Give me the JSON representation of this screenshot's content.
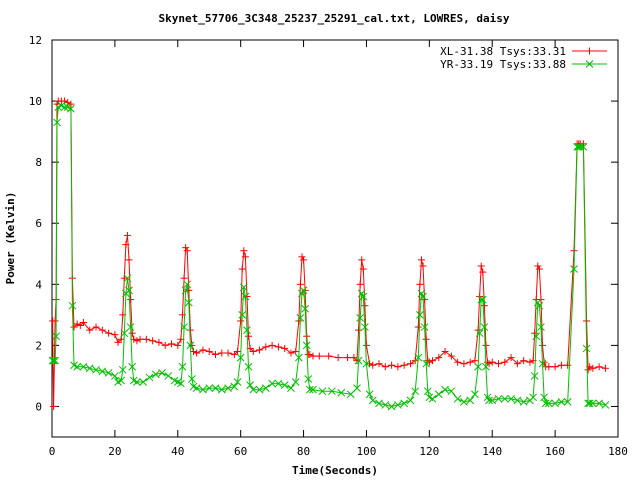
{
  "chart_data": {
    "type": "line",
    "title": "Skynet_57706_3C348_25237_25291_cal.txt, LOWRES, daisy",
    "xlabel": "Time(Seconds)",
    "ylabel": "Power (Kelvin)",
    "xlim": [
      0,
      180
    ],
    "ylim": [
      -1,
      12
    ],
    "xticks": [
      0,
      20,
      40,
      60,
      80,
      100,
      120,
      140,
      160,
      180
    ],
    "yticks": [
      0,
      2,
      4,
      6,
      8,
      10,
      12
    ],
    "xtick_labels": [
      "0",
      "20",
      "40",
      "60",
      "80",
      "100",
      "120",
      "140",
      "160",
      "180"
    ],
    "ytick_labels": [
      "0",
      "2",
      "4",
      "6",
      "8",
      "10",
      "12"
    ],
    "grid": false,
    "legend_position": "top-right",
    "series": [
      {
        "name": "XL-31.38 Tsys:33.31",
        "color": "#ff0000",
        "marker": "plus",
        "x": [
          0.2,
          0.5,
          1.0,
          1.3,
          1.6,
          2.0,
          3.0,
          4.0,
          5.0,
          6.0,
          6.5,
          7.0,
          8.0,
          9.0,
          10.0,
          12.0,
          14.0,
          16.0,
          18.0,
          20.0,
          21.0,
          22.0,
          22.5,
          23.0,
          23.5,
          24.0,
          24.5,
          25.0,
          25.5,
          26.0,
          27.0,
          28.0,
          30.0,
          32.0,
          34.0,
          36.0,
          38.0,
          40.0,
          41.0,
          41.5,
          42.0,
          42.5,
          43.0,
          43.5,
          44.0,
          44.5,
          45.0,
          46.0,
          48.0,
          50.0,
          52.0,
          54.0,
          56.0,
          58.0,
          59.0,
          60.0,
          60.5,
          61.0,
          61.5,
          62.0,
          62.5,
          63.0,
          64.0,
          66.0,
          68.0,
          70.0,
          72.0,
          74.0,
          76.0,
          77.5,
          78.5,
          79.0,
          79.5,
          80.0,
          80.5,
          81.0,
          81.5,
          82.0,
          83.0,
          85.0,
          88.0,
          91.0,
          94.0,
          96.0,
          97.0,
          97.5,
          98.0,
          98.5,
          99.0,
          99.5,
          100.0,
          101.0,
          102.0,
          104.0,
          106.0,
          108.0,
          110.0,
          112.0,
          114.0,
          115.5,
          116.5,
          117.0,
          117.5,
          118.0,
          118.5,
          119.0,
          119.5,
          120.0,
          121.0,
          123.0,
          125.0,
          127.0,
          129.0,
          131.0,
          133.0,
          134.5,
          135.5,
          136.0,
          136.5,
          137.0,
          137.5,
          138.0,
          138.5,
          139.0,
          140.0,
          142.0,
          144.0,
          146.0,
          148.0,
          150.0,
          152.0,
          153.0,
          153.5,
          154.0,
          154.5,
          155.0,
          155.5,
          156.0,
          156.5,
          157.0,
          158.0,
          160.0,
          162.0,
          164.0,
          166.0,
          167.0,
          167.5,
          168.0,
          169.0,
          170.0,
          170.5,
          171.0,
          172.0,
          174.0,
          176.0
        ],
        "y": [
          2.8,
          0.0,
          2.8,
          3.5,
          9.9,
          10.0,
          10.0,
          10.0,
          9.95,
          9.9,
          4.2,
          2.6,
          2.7,
          2.65,
          2.75,
          2.5,
          2.6,
          2.5,
          2.4,
          2.35,
          2.1,
          2.2,
          3.0,
          4.2,
          5.3,
          5.6,
          4.8,
          3.5,
          2.4,
          2.2,
          2.15,
          2.2,
          2.2,
          2.15,
          2.1,
          2.0,
          2.05,
          2.0,
          2.2,
          3.0,
          4.2,
          5.2,
          5.1,
          3.8,
          2.5,
          2.0,
          1.8,
          1.75,
          1.85,
          1.8,
          1.7,
          1.75,
          1.75,
          1.7,
          1.8,
          2.8,
          4.5,
          5.1,
          4.9,
          3.6,
          2.3,
          1.9,
          1.8,
          1.85,
          1.95,
          2.0,
          1.95,
          1.9,
          1.75,
          1.8,
          2.8,
          4.0,
          4.9,
          4.8,
          3.8,
          2.3,
          1.7,
          1.7,
          1.65,
          1.65,
          1.65,
          1.6,
          1.6,
          1.6,
          1.5,
          2.5,
          4.0,
          4.8,
          4.5,
          3.3,
          2.0,
          1.4,
          1.35,
          1.4,
          1.3,
          1.35,
          1.3,
          1.35,
          1.4,
          1.5,
          2.6,
          4.0,
          4.8,
          4.6,
          3.5,
          2.2,
          1.5,
          1.45,
          1.5,
          1.6,
          1.8,
          1.65,
          1.45,
          1.4,
          1.45,
          1.5,
          2.5,
          3.6,
          4.6,
          4.4,
          3.3,
          2.0,
          1.45,
          1.4,
          1.45,
          1.4,
          1.45,
          1.6,
          1.4,
          1.5,
          1.45,
          1.5,
          2.4,
          3.5,
          4.6,
          4.5,
          3.5,
          2.0,
          1.45,
          1.3,
          1.3,
          1.3,
          1.35,
          1.35,
          5.1,
          8.6,
          8.6,
          8.6,
          8.6,
          2.8,
          1.2,
          1.3,
          1.25,
          1.3,
          1.25
        ]
      },
      {
        "name": "YR-33.19 Tsys:33.88",
        "color": "#00c000",
        "marker": "cross",
        "x": [
          0.2,
          0.5,
          1.0,
          1.3,
          1.6,
          2.0,
          3.0,
          4.0,
          5.0,
          6.0,
          6.5,
          7.0,
          8.0,
          10.0,
          12.0,
          14.0,
          16.0,
          18.0,
          20.0,
          21.0,
          22.0,
          22.5,
          23.0,
          23.5,
          24.0,
          24.5,
          25.0,
          25.5,
          26.0,
          27.0,
          29.0,
          31.0,
          33.0,
          35.0,
          37.0,
          39.0,
          40.0,
          41.0,
          41.5,
          42.0,
          42.5,
          43.0,
          43.5,
          44.0,
          44.5,
          45.0,
          46.0,
          48.0,
          50.0,
          52.0,
          54.0,
          56.0,
          58.0,
          59.0,
          60.0,
          60.5,
          61.0,
          61.5,
          62.0,
          62.5,
          63.0,
          64.0,
          66.0,
          68.0,
          70.0,
          72.0,
          74.0,
          76.0,
          77.5,
          78.5,
          79.0,
          79.5,
          80.0,
          80.5,
          81.0,
          81.5,
          82.0,
          83.0,
          86.0,
          89.0,
          92.0,
          95.0,
          97.0,
          97.5,
          98.0,
          98.5,
          99.0,
          99.5,
          100.0,
          101.0,
          102.0,
          104.0,
          106.0,
          108.0,
          110.0,
          112.0,
          114.0,
          115.5,
          116.5,
          117.0,
          117.5,
          118.0,
          118.5,
          119.0,
          119.5,
          120.0,
          121.0,
          123.0,
          125.0,
          127.0,
          129.0,
          131.0,
          133.0,
          134.5,
          135.5,
          136.0,
          136.5,
          137.0,
          137.5,
          138.0,
          138.5,
          139.0,
          140.0,
          142.0,
          144.0,
          146.0,
          148.0,
          150.0,
          152.0,
          153.0,
          153.5,
          154.0,
          154.5,
          155.0,
          155.5,
          156.0,
          156.5,
          157.0,
          158.0,
          160.0,
          162.0,
          164.0,
          166.0,
          167.0,
          167.5,
          168.0,
          169.0,
          170.0,
          170.5,
          171.0,
          172.0,
          174.0,
          176.0
        ],
        "y": [
          1.5,
          1.5,
          1.5,
          2.3,
          9.3,
          9.8,
          9.85,
          9.8,
          9.8,
          9.75,
          3.3,
          1.35,
          1.3,
          1.3,
          1.25,
          1.2,
          1.15,
          1.1,
          1.0,
          0.8,
          0.85,
          1.2,
          2.4,
          3.7,
          4.2,
          3.8,
          2.6,
          1.3,
          0.85,
          0.8,
          0.8,
          0.95,
          1.05,
          1.1,
          1.0,
          0.85,
          0.8,
          0.75,
          1.3,
          2.6,
          3.8,
          4.0,
          3.4,
          2.0,
          0.9,
          0.65,
          0.6,
          0.55,
          0.6,
          0.6,
          0.55,
          0.6,
          0.65,
          0.8,
          1.6,
          3.0,
          3.9,
          3.6,
          2.5,
          1.3,
          0.7,
          0.55,
          0.55,
          0.6,
          0.75,
          0.75,
          0.7,
          0.6,
          0.8,
          1.6,
          2.9,
          3.7,
          3.8,
          3.2,
          2.0,
          0.9,
          0.55,
          0.55,
          0.5,
          0.5,
          0.45,
          0.4,
          0.6,
          1.5,
          2.9,
          3.7,
          3.6,
          2.6,
          1.4,
          0.4,
          0.2,
          0.1,
          0.05,
          0.0,
          0.05,
          0.1,
          0.2,
          0.5,
          1.6,
          3.0,
          3.7,
          3.6,
          2.6,
          1.4,
          0.5,
          0.3,
          0.25,
          0.4,
          0.55,
          0.5,
          0.25,
          0.15,
          0.2,
          0.4,
          1.3,
          2.4,
          3.5,
          3.5,
          2.6,
          1.3,
          0.3,
          0.2,
          0.2,
          0.25,
          0.25,
          0.25,
          0.2,
          0.15,
          0.2,
          0.3,
          1.0,
          2.3,
          3.4,
          3.3,
          2.6,
          1.4,
          0.3,
          0.1,
          0.1,
          0.1,
          0.15,
          0.15,
          4.5,
          8.5,
          8.5,
          8.5,
          8.5,
          1.9,
          0.1,
          0.1,
          0.1,
          0.1,
          0.05
        ]
      }
    ]
  }
}
